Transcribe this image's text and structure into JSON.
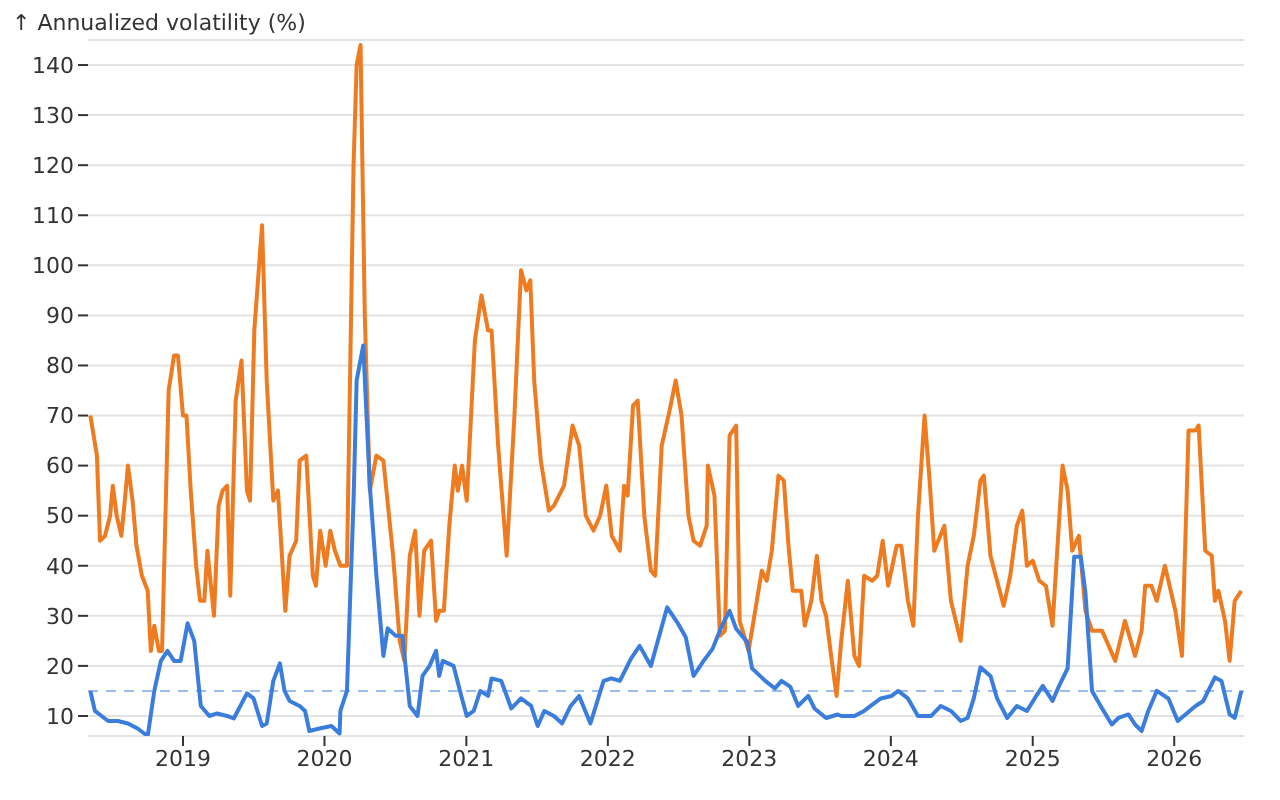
{
  "chart_data": {
    "type": "line",
    "ylabel": "↑ Annualized volatility (%)",
    "xlim": [
      "2018-05-01",
      "2026-06-30"
    ],
    "xticks": [
      "2019",
      "2020",
      "2021",
      "2022",
      "2023",
      "2024",
      "2025",
      "2026"
    ],
    "ylim": [
      6,
      145
    ],
    "yticks": [
      10,
      20,
      30,
      40,
      50,
      60,
      70,
      80,
      90,
      100,
      110,
      120,
      130,
      140
    ],
    "grid": "y",
    "marker": "none",
    "line_style": "solid",
    "ref_lines": [
      {
        "axis": "y",
        "value": 15,
        "color": "#9bbcf0",
        "line_style": "dashed"
      }
    ],
    "series": [
      {
        "color": "#ef7b21",
        "x": [
          "2018-05-07",
          "2018-05-24",
          "2018-06-01",
          "2018-06-14",
          "2018-06-27",
          "2018-07-04",
          "2018-07-14",
          "2018-07-26",
          "2018-08-04",
          "2018-08-12",
          "2018-08-24",
          "2018-09-03",
          "2018-09-17",
          "2018-10-02",
          "2018-10-10",
          "2018-10-19",
          "2018-10-31",
          "2018-11-08",
          "2018-11-25",
          "2018-12-09",
          "2018-12-19",
          "2019-01-01",
          "2019-01-10",
          "2019-01-21",
          "2019-02-04",
          "2019-02-14",
          "2019-02-25",
          "2019-03-05",
          "2019-03-22",
          "2019-04-03",
          "2019-04-13",
          "2019-04-25",
          "2019-05-03",
          "2019-05-17",
          "2019-06-01",
          "2019-06-15",
          "2019-06-23",
          "2019-07-04",
          "2019-07-24",
          "2019-08-05",
          "2019-08-22",
          "2019-09-03",
          "2019-09-22",
          "2019-10-03",
          "2019-10-20",
          "2019-10-29",
          "2019-11-15",
          "2019-12-02",
          "2019-12-10",
          "2019-12-21",
          "2020-01-04",
          "2020-01-16",
          "2020-01-28",
          "2020-02-11",
          "2020-02-28",
          "2020-03-16",
          "2020-03-24",
          "2020-04-03",
          "2020-04-14",
          "2020-04-27",
          "2020-05-14",
          "2020-06-01",
          "2020-06-26",
          "2020-07-13",
          "2020-07-25",
          "2020-08-08",
          "2020-08-22",
          "2020-09-02",
          "2020-09-14",
          "2020-10-02",
          "2020-10-15",
          "2020-10-23",
          "2020-11-04",
          "2020-11-18",
          "2020-12-02",
          "2020-12-10",
          "2020-12-21",
          "2021-01-02",
          "2021-01-23",
          "2021-02-09",
          "2021-02-26",
          "2021-03-07",
          "2021-03-24",
          "2021-04-15",
          "2021-05-05",
          "2021-05-22",
          "2021-06-05",
          "2021-06-15",
          "2021-06-25",
          "2021-07-12",
          "2021-08-02",
          "2021-08-15",
          "2021-09-10",
          "2021-10-02",
          "2021-10-19",
          "2021-11-05",
          "2021-11-25",
          "2021-12-12",
          "2021-12-28",
          "2022-01-11",
          "2022-02-01",
          "2022-02-12",
          "2022-02-21",
          "2022-03-07",
          "2022-03-19",
          "2022-04-05",
          "2022-04-22",
          "2022-05-03",
          "2022-05-20",
          "2022-06-12",
          "2022-06-25",
          "2022-07-10",
          "2022-07-28",
          "2022-08-10",
          "2022-08-27",
          "2022-09-13",
          "2022-09-16",
          "2022-10-03",
          "2022-10-17",
          "2022-10-30",
          "2022-11-11",
          "2022-11-28",
          "2022-12-07",
          "2022-12-30",
          "2023-01-16",
          "2023-02-02",
          "2023-02-15",
          "2023-02-28",
          "2023-03-17",
          "2023-03-31",
          "2023-04-12",
          "2023-04-23",
          "2023-05-15",
          "2023-05-24",
          "2023-06-10",
          "2023-06-24",
          "2023-07-06",
          "2023-07-18",
          "2023-07-31",
          "2023-08-14",
          "2023-08-26",
          "2023-09-12",
          "2023-09-29",
          "2023-10-11",
          "2023-10-24",
          "2023-11-14",
          "2023-11-27",
          "2023-12-11",
          "2023-12-25",
          "2024-01-16",
          "2024-01-28",
          "2024-02-14",
          "2024-02-28",
          "2024-03-11",
          "2024-03-28",
          "2024-04-10",
          "2024-04-22",
          "2024-05-18",
          "2024-06-04",
          "2024-06-29",
          "2024-07-17",
          "2024-08-02",
          "2024-08-19",
          "2024-08-28",
          "2024-09-14",
          "2024-10-18",
          "2024-11-04",
          "2024-11-21",
          "2024-12-05",
          "2024-12-17",
          "2025-01-01",
          "2025-01-18",
          "2025-02-04",
          "2025-02-21",
          "2025-03-19",
          "2025-04-01",
          "2025-04-13",
          "2025-04-30",
          "2025-05-17",
          "2025-06-03",
          "2025-06-29",
          "2025-08-02",
          "2025-08-27",
          "2025-09-22",
          "2025-10-09",
          "2025-10-18",
          "2025-11-03",
          "2025-11-17",
          "2025-12-08",
          "2026-01-04",
          "2026-01-21",
          "2026-02-07",
          "2026-02-25",
          "2026-03-05",
          "2026-03-22",
          "2026-04-08",
          "2026-04-16",
          "2026-04-25",
          "2026-05-12",
          "2026-05-24",
          "2026-06-06",
          "2026-06-23"
        ],
        "values": [
          70,
          62,
          45,
          46,
          50,
          56,
          50,
          46,
          53,
          60,
          53,
          44,
          38,
          35,
          23,
          28,
          23,
          23,
          75,
          82,
          82,
          70,
          70,
          55,
          40,
          33,
          33,
          43,
          30,
          52,
          55,
          56,
          34,
          73,
          81,
          55,
          53,
          87,
          108,
          77,
          53,
          55,
          31,
          42,
          45,
          61,
          62,
          38,
          36,
          47,
          40,
          47,
          43,
          40,
          40,
          120,
          140,
          144,
          90,
          55,
          62,
          61,
          42,
          25,
          21,
          42,
          47,
          30,
          43,
          45,
          29,
          31,
          31,
          48,
          60,
          55,
          60,
          53,
          85,
          94,
          87,
          87,
          64,
          42,
          70,
          99,
          95,
          97,
          77,
          61,
          51,
          52,
          56,
          68,
          64,
          50,
          47,
          50,
          56,
          46,
          43,
          56,
          54,
          72,
          73,
          50,
          39,
          38,
          64,
          72,
          77,
          70,
          50,
          45,
          44,
          48,
          60,
          54,
          26,
          27,
          66,
          68,
          29,
          23,
          31,
          39,
          37,
          43,
          58,
          57,
          44,
          35,
          35,
          28,
          33,
          42,
          33,
          30,
          22,
          14,
          25,
          37,
          22,
          20,
          38,
          37,
          38,
          45,
          36,
          44,
          44,
          33,
          28,
          50,
          70,
          57,
          43,
          48,
          33,
          25,
          40,
          46,
          57,
          58,
          42,
          32,
          38,
          48,
          51,
          40,
          41,
          37,
          36,
          28,
          60,
          55,
          43,
          46,
          31,
          27,
          27,
          21,
          29,
          22,
          27,
          36,
          36,
          33,
          40,
          31,
          22,
          67,
          67,
          68,
          43,
          42,
          33,
          35,
          29,
          21,
          33,
          35
        ]
      },
      {
        "color": "#3b7ddd",
        "x": [
          "2018-05-07",
          "2018-05-19",
          "2018-06-05",
          "2018-06-22",
          "2018-07-17",
          "2018-08-12",
          "2018-09-06",
          "2018-10-02",
          "2018-10-19",
          "2018-11-05",
          "2018-11-22",
          "2018-12-09",
          "2018-12-26",
          "2019-01-13",
          "2019-01-30",
          "2019-02-16",
          "2019-03-10",
          "2019-03-30",
          "2019-04-25",
          "2019-05-12",
          "2019-06-15",
          "2019-07-02",
          "2019-07-24",
          "2019-08-05",
          "2019-08-22",
          "2019-09-08",
          "2019-09-20",
          "2019-10-03",
          "2019-10-29",
          "2019-11-12",
          "2019-11-23",
          "2019-12-19",
          "2020-01-19",
          "2020-02-09",
          "2020-02-11",
          "2020-02-28",
          "2020-03-16",
          "2020-03-24",
          "2020-04-10",
          "2020-04-27",
          "2020-05-14",
          "2020-06-01",
          "2020-06-12",
          "2020-07-03",
          "2020-07-20",
          "2020-08-08",
          "2020-08-28",
          "2020-09-10",
          "2020-09-28",
          "2020-10-15",
          "2020-10-23",
          "2020-11-01",
          "2020-11-29",
          "2020-12-19",
          "2021-01-02",
          "2021-01-20",
          "2021-02-06",
          "2021-02-26",
          "2021-03-07",
          "2021-04-01",
          "2021-04-27",
          "2021-05-22",
          "2021-06-17",
          "2021-07-04",
          "2021-07-21",
          "2021-08-15",
          "2021-09-05",
          "2021-09-27",
          "2021-10-19",
          "2021-11-17",
          "2021-12-21",
          "2022-01-10",
          "2022-02-01",
          "2022-03-02",
          "2022-03-24",
          "2022-04-22",
          "2022-06-03",
          "2022-06-29",
          "2022-07-21",
          "2022-08-10",
          "2022-09-05",
          "2022-09-28",
          "2022-10-22",
          "2022-11-11",
          "2022-11-28",
          "2022-12-27",
          "2023-01-08",
          "2023-02-11",
          "2023-03-08",
          "2023-03-25",
          "2023-04-17",
          "2023-05-07",
          "2023-06-02",
          "2023-06-18",
          "2023-07-18",
          "2023-08-17",
          "2023-08-26",
          "2023-09-29",
          "2023-10-24",
          "2023-11-10",
          "2023-12-06",
          "2024-01-03",
          "2024-01-20",
          "2024-02-14",
          "2024-03-11",
          "2024-04-14",
          "2024-05-09",
          "2024-06-04",
          "2024-06-29",
          "2024-07-17",
          "2024-08-02",
          "2024-08-19",
          "2024-09-14",
          "2024-10-01",
          "2024-10-27",
          "2024-11-21",
          "2024-12-17",
          "2025-01-10",
          "2025-01-27",
          "2025-02-21",
          "2025-03-10",
          "2025-04-01",
          "2025-04-18",
          "2025-05-05",
          "2025-05-17",
          "2025-06-03",
          "2025-06-29",
          "2025-07-24",
          "2025-08-10",
          "2025-09-05",
          "2025-09-22",
          "2025-10-09",
          "2025-10-26",
          "2025-11-17",
          "2025-12-17",
          "2026-01-10",
          "2026-01-30",
          "2026-02-25",
          "2026-03-17",
          "2026-04-16",
          "2026-05-03",
          "2026-05-24",
          "2026-06-06",
          "2026-06-23"
        ],
        "values": [
          15,
          11,
          10,
          9,
          9,
          8.5,
          7.5,
          6,
          15,
          21,
          23,
          21,
          21,
          28.5,
          25,
          12,
          10,
          10.5,
          10,
          9.5,
          14.5,
          13.5,
          8,
          8.5,
          17,
          20.5,
          15,
          13,
          12,
          11,
          7,
          7.5,
          8,
          6.5,
          11,
          15,
          53,
          77,
          84,
          56,
          38,
          22,
          27.5,
          26,
          26,
          12,
          10,
          18,
          20,
          23,
          18,
          21,
          20,
          14,
          10,
          11,
          15,
          14,
          17.5,
          17,
          11.5,
          13.5,
          12,
          8,
          11,
          10,
          8.5,
          12,
          14,
          8.5,
          17,
          17.5,
          17,
          21.5,
          24,
          20,
          31.7,
          28.7,
          25.7,
          18,
          21,
          23.4,
          28,
          31,
          27.4,
          24.7,
          19.5,
          17,
          15.5,
          17,
          15.8,
          12,
          14,
          11.5,
          9.6,
          10.3,
          10,
          10,
          11,
          12,
          13.5,
          14,
          15,
          13.5,
          10,
          10,
          12,
          11,
          9,
          9.6,
          13.5,
          19.7,
          18,
          13.5,
          9.6,
          12,
          11,
          14,
          16,
          13,
          16,
          19.5,
          41.8,
          41.8,
          34.6,
          15,
          11.5,
          8.3,
          9.6,
          10.3,
          8.3,
          7,
          11,
          15,
          13.5,
          9,
          10.3,
          12,
          13,
          17.7,
          17,
          10.3,
          9.6,
          15
        ]
      }
    ]
  }
}
